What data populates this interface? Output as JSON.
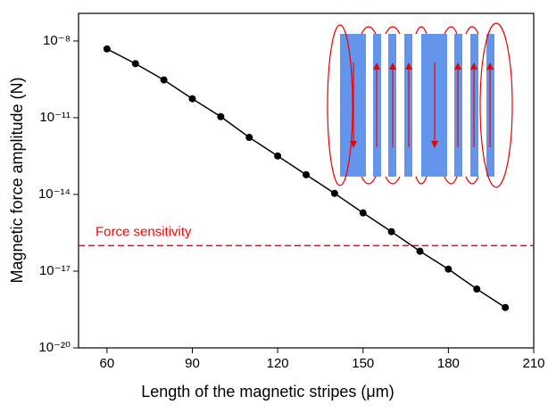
{
  "chart_data": {
    "type": "line",
    "x_label": "Length of the magnetic stripes  (μm)",
    "y_label": "Magnetic force amplitude  (N)",
    "x": [
      60,
      70,
      80,
      90,
      100,
      110,
      120,
      130,
      140,
      150,
      160,
      170,
      180,
      190,
      200
    ],
    "values": [
      4.9e-09,
      1.3e-09,
      3e-10,
      5.5e-11,
      1.1e-11,
      1.7e-12,
      3.2e-13,
      5.9e-14,
      1.1e-14,
      1.9e-15,
      3.5e-16,
      6e-17,
      1.2e-17,
      2e-18,
      3.8e-19
    ],
    "color": "#000000",
    "xlim": [
      50,
      210
    ],
    "xticks": [
      60,
      90,
      120,
      150,
      180,
      210
    ],
    "ylim": [
      1e-20,
      1.2e-07
    ],
    "y_scale": "log",
    "yticks": [
      {
        "value": 1e-20,
        "label": "10⁻²⁰"
      },
      {
        "value": 1e-17,
        "label": "10⁻¹⁷"
      },
      {
        "value": 1e-14,
        "label": "10⁻¹⁴"
      },
      {
        "value": 1e-11,
        "label": "10⁻¹¹"
      },
      {
        "value": 1e-08,
        "label": "10⁻⁸"
      }
    ],
    "reference_line": {
      "value": 1e-16,
      "label": "Force sensitivity",
      "color": "#ff0000"
    }
  }
}
